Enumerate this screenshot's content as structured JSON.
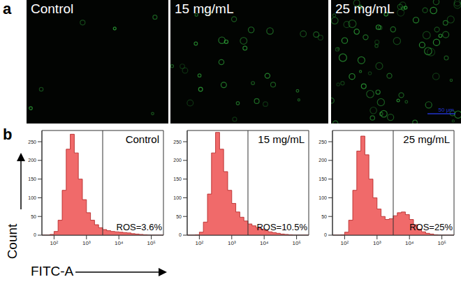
{
  "figure": {
    "panel_labels": [
      "a",
      "b"
    ]
  },
  "images": {
    "panels": [
      {
        "label": "Control"
      },
      {
        "label": "15 mg/mL"
      },
      {
        "label": "25 mg/mL",
        "scale_bar": "50 μm"
      }
    ]
  },
  "chart_data": [
    {
      "type": "histogram",
      "title": "Control",
      "x_label": "FITC-A",
      "y_label": "Count",
      "color": "#f06a6a",
      "log": "x",
      "bins": [
        42.2,
        56.2,
        75.0,
        100,
        133,
        178,
        237,
        316,
        422,
        562,
        750,
        1000,
        1334,
        1778,
        2371,
        3162,
        4217,
        5623,
        7499,
        10000,
        13335,
        17783,
        23714,
        31623,
        42170,
        56234,
        74989,
        100000,
        133352,
        177828,
        237137
      ],
      "counts": [
        0,
        0,
        2,
        10,
        40,
        120,
        230,
        270,
        220,
        150,
        95,
        60,
        40,
        28,
        20,
        15,
        12,
        10,
        9,
        8,
        7,
        6,
        4,
        3,
        2,
        1,
        0,
        0,
        0,
        0
      ],
      "xlim": [
        42.2,
        237137
      ],
      "xticks": [
        {
          "value": 100,
          "label": "10²"
        },
        {
          "value": 1000,
          "label": "10³"
        },
        {
          "value": 10000,
          "label": "10⁴"
        },
        {
          "value": 100000,
          "label": "10⁵"
        }
      ],
      "ylim": [
        0,
        280
      ],
      "yticks": [
        0,
        50,
        100,
        150,
        200,
        250
      ],
      "gate_x": 3162,
      "gate_label": "ROS=3.6%"
    },
    {
      "type": "histogram",
      "title": "15 mg/mL",
      "color": "#f06a6a",
      "log": "x",
      "bins": [
        42.2,
        56.2,
        75.0,
        100,
        133,
        178,
        237,
        316,
        422,
        562,
        750,
        1000,
        1334,
        1778,
        2371,
        3162,
        4217,
        5623,
        7499,
        10000,
        13335,
        17783,
        23714,
        31623,
        42170,
        56234,
        74989,
        100000,
        133352,
        177828,
        237137
      ],
      "counts": [
        0,
        0,
        1,
        8,
        35,
        110,
        220,
        275,
        230,
        170,
        120,
        85,
        62,
        48,
        38,
        30,
        25,
        20,
        16,
        12,
        9,
        7,
        5,
        3,
        2,
        1,
        0,
        0,
        0,
        0
      ],
      "xlim": [
        42.2,
        237137
      ],
      "xticks": [
        {
          "value": 100,
          "label": "10²"
        },
        {
          "value": 1000,
          "label": "10³"
        },
        {
          "value": 10000,
          "label": "10⁴"
        },
        {
          "value": 100000,
          "label": "10⁵"
        }
      ],
      "ylim": [
        0,
        280
      ],
      "yticks": [
        0,
        50,
        100,
        150,
        200,
        250
      ],
      "gate_x": 3162,
      "gate_label": "ROS=10.5%"
    },
    {
      "type": "histogram",
      "title": "25 mg/mL",
      "color": "#f06a6a",
      "log": "x",
      "bins": [
        42.2,
        56.2,
        75.0,
        100,
        133,
        178,
        237,
        316,
        422,
        562,
        750,
        1000,
        1334,
        1778,
        2371,
        3162,
        4217,
        5623,
        7499,
        10000,
        13335,
        17783,
        23714,
        31623,
        42170,
        56234,
        74989,
        100000,
        133352,
        177828,
        237137
      ],
      "counts": [
        0,
        0,
        1,
        8,
        40,
        120,
        225,
        265,
        215,
        150,
        100,
        70,
        50,
        42,
        44,
        52,
        60,
        62,
        55,
        42,
        28,
        16,
        9,
        5,
        3,
        1,
        0,
        0,
        0,
        0
      ],
      "xlim": [
        42.2,
        237137
      ],
      "xticks": [
        {
          "value": 100,
          "label": "10²"
        },
        {
          "value": 1000,
          "label": "10³"
        },
        {
          "value": 10000,
          "label": "10⁴"
        },
        {
          "value": 100000,
          "label": "10⁵"
        }
      ],
      "ylim": [
        0,
        280
      ],
      "yticks": [
        0,
        50,
        100,
        150,
        200,
        250
      ],
      "gate_x": 3162,
      "gate_label": "ROS=25%"
    }
  ]
}
